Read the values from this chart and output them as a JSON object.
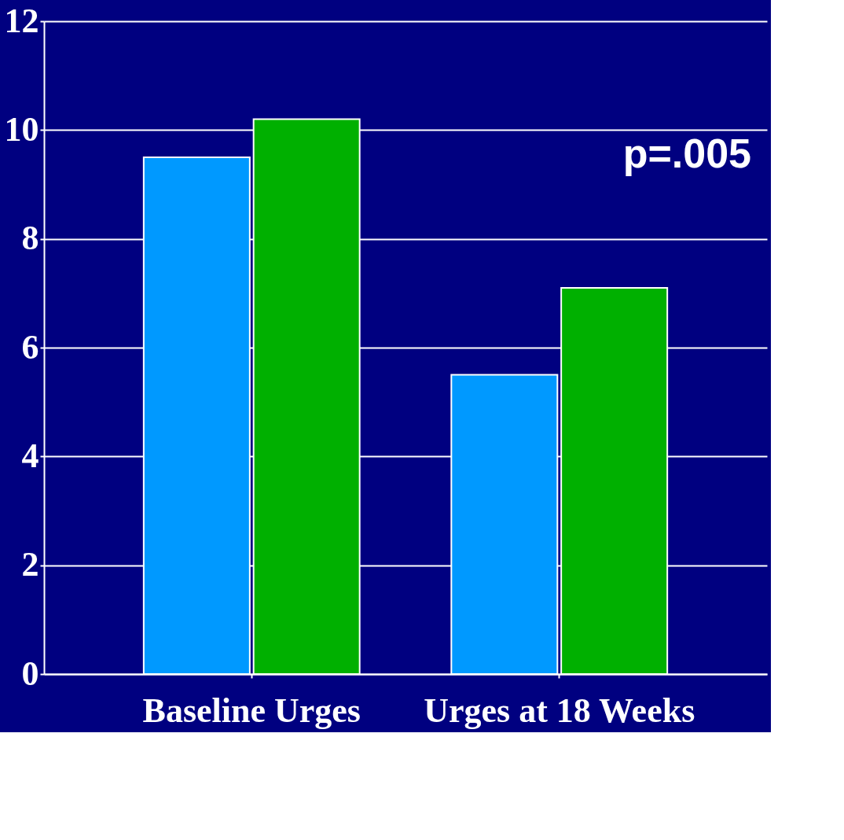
{
  "chart_data": {
    "type": "bar",
    "categories": [
      "Baseline Urges",
      "Urges at 18 Weeks"
    ],
    "series": [
      {
        "color": "#0099ff",
        "values": [
          9.5,
          5.5
        ]
      },
      {
        "color": "#00b000",
        "values": [
          10.2,
          7.1
        ]
      }
    ],
    "ylim": [
      0,
      12
    ],
    "yticks": [
      0,
      2,
      4,
      6,
      8,
      10,
      12
    ],
    "grid": "y",
    "annotations": [
      "p=.005"
    ]
  }
}
